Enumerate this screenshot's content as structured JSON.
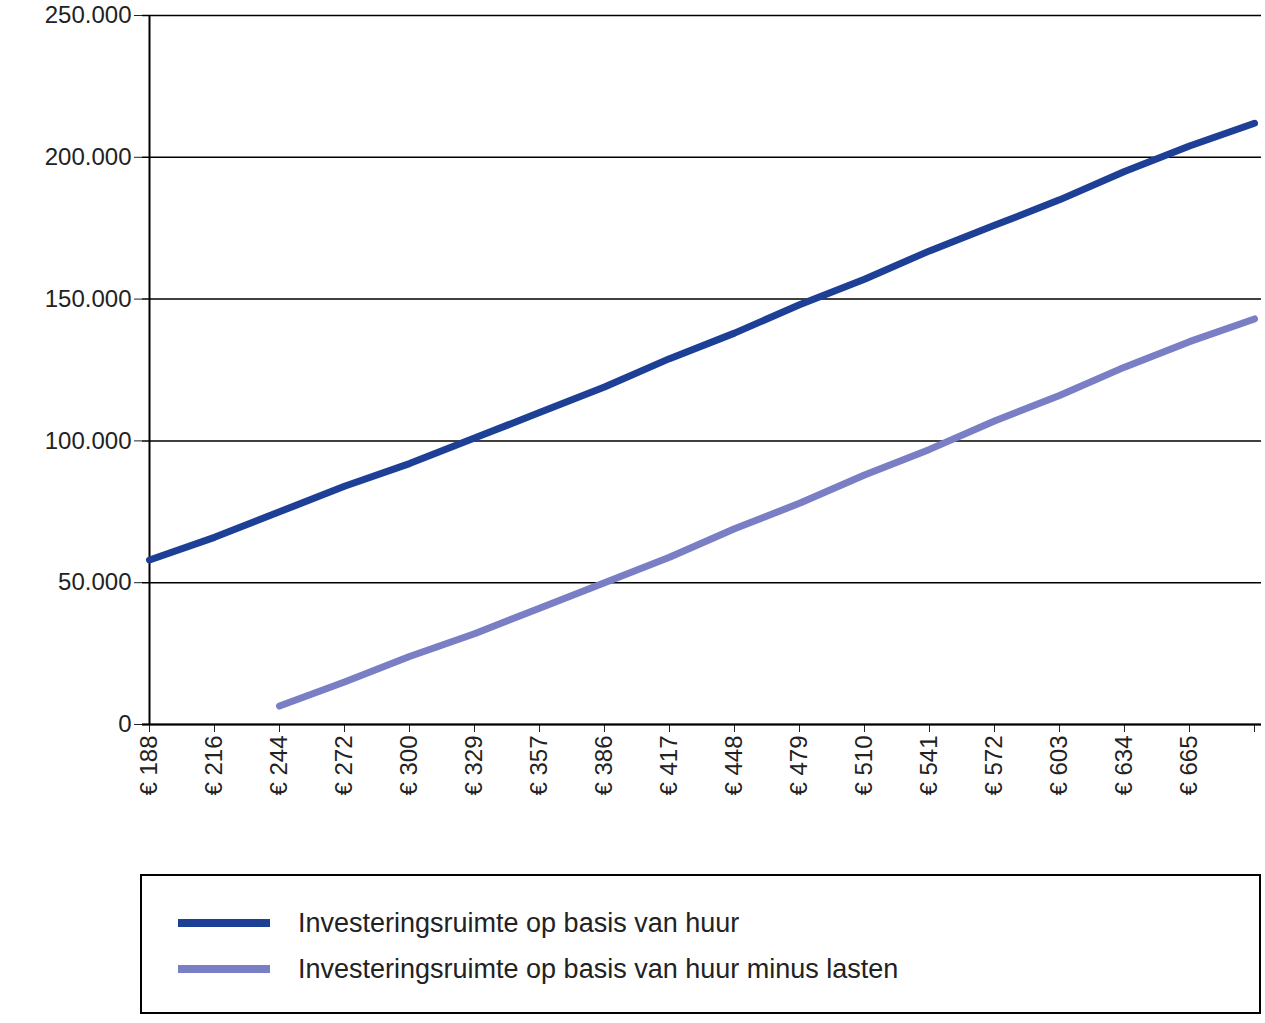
{
  "chart_data": {
    "type": "line",
    "categories": [
      "€ 188",
      "€ 216",
      "€ 244",
      "€ 272",
      "€ 300",
      "€ 329",
      "€ 357",
      "€ 386",
      "€ 417",
      "€ 448",
      "€ 479",
      "€ 510",
      "€ 541",
      "€ 572",
      "€ 603",
      "€ 634",
      "€ 665",
      null
    ],
    "series": [
      {
        "name": "Investeringsruimte op basis van huur",
        "color": "#1d3f96",
        "values": [
          58000,
          66000,
          75000,
          84000,
          92000,
          101000,
          110000,
          119000,
          129000,
          138000,
          148000,
          157000,
          167000,
          176000,
          185000,
          195000,
          204000,
          212000
        ]
      },
      {
        "name": "Investeringsruimte op basis van huur minus lasten",
        "color": "#7a7ec4",
        "values": [
          null,
          null,
          6500,
          15000,
          24000,
          32000,
          41000,
          50000,
          59000,
          69000,
          78000,
          88000,
          97000,
          107000,
          116000,
          126000,
          135000,
          143000
        ]
      }
    ],
    "ylim": [
      0,
      250000
    ],
    "yticks": [
      0,
      {
        "value": 50000,
        "label": "50.000"
      },
      {
        "value": 100000,
        "label": "100.000"
      },
      {
        "value": 150000,
        "label": "150.000"
      },
      {
        "value": 200000,
        "label": "200.000"
      },
      {
        "value": 250000,
        "label": "250.000"
      }
    ],
    "grid": true,
    "legend": "bottom"
  }
}
